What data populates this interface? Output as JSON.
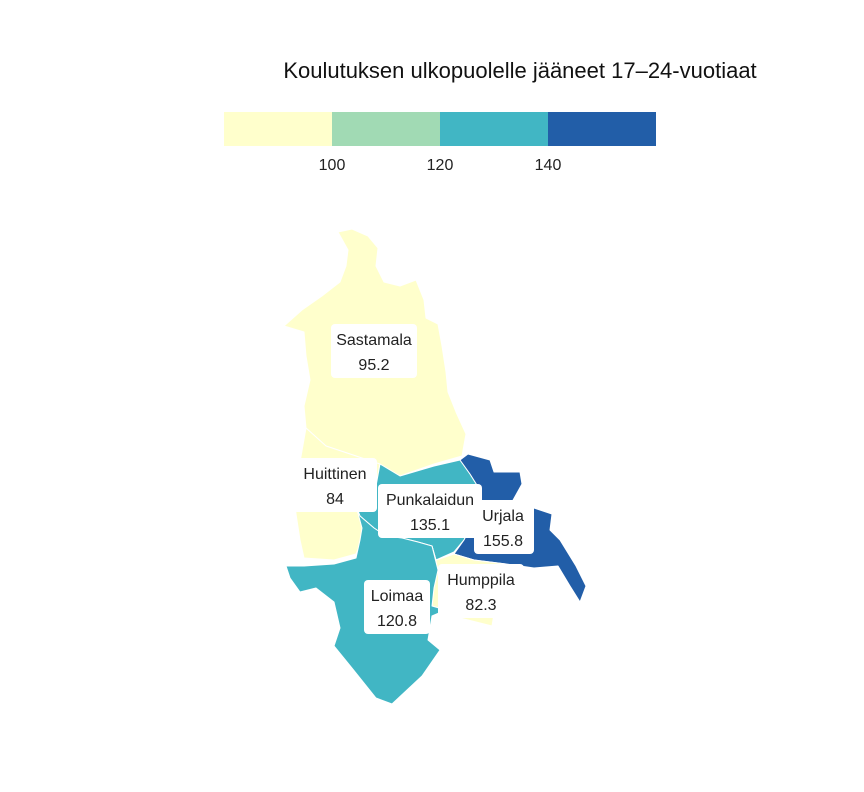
{
  "map": {
    "title": "Koulutuksen ulkopuolelle jääneet 17–24-vuotiaat"
  },
  "legend": {
    "bins": [
      {
        "color": "#ffffcc"
      },
      {
        "color": "#a1dab4"
      },
      {
        "color": "#41b6c4"
      },
      {
        "color": "#225ea8"
      }
    ],
    "ticks": [
      "100",
      "120",
      "140"
    ]
  },
  "regions": [
    {
      "id": "sastamala",
      "name": "Sastamala",
      "value": "95.2",
      "color": "#ffffcc"
    },
    {
      "id": "huittinen",
      "name": "Huittinen",
      "value": "84",
      "color": "#ffffcc"
    },
    {
      "id": "punkalaidun",
      "name": "Punkalaidun",
      "value": "135.1",
      "color": "#41b6c4"
    },
    {
      "id": "urjala",
      "name": "Urjala",
      "value": "155.8",
      "color": "#225ea8"
    },
    {
      "id": "humppila",
      "name": "Humppila",
      "value": "82.3",
      "color": "#ffffcc"
    },
    {
      "id": "loimaa",
      "name": "Loimaa",
      "value": "120.8",
      "color": "#41b6c4"
    }
  ]
}
